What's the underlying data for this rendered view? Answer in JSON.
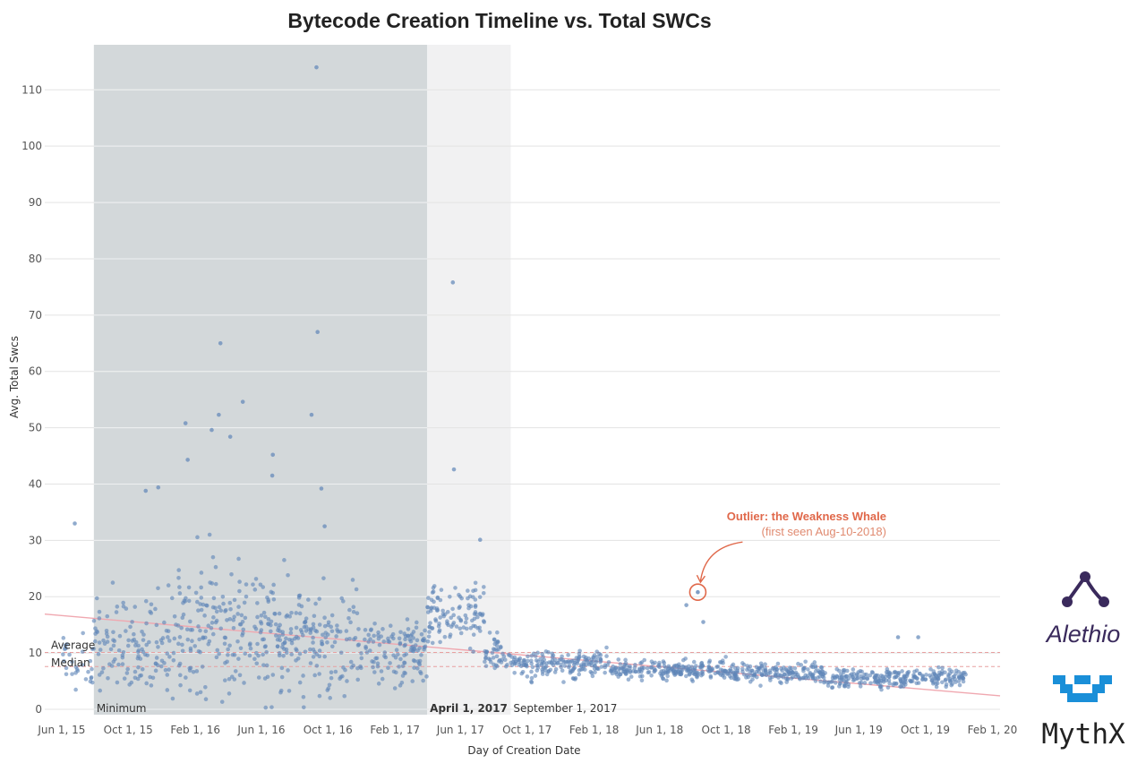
{
  "chart_data": {
    "type": "scatter",
    "title": "Bytecode Creation Timeline vs. Total SWCs",
    "xlabel": "Day of Creation Date",
    "ylabel": "Avg. Total Swcs",
    "x_range": [
      "2015-05-01",
      "2020-02-15"
    ],
    "ylim": [
      0,
      118
    ],
    "y_ticks": [
      0,
      10,
      20,
      30,
      40,
      50,
      60,
      70,
      80,
      90,
      100,
      110
    ],
    "x_ticks": [
      {
        "date": "2015-06-01",
        "label": "Jun 1, 15"
      },
      {
        "date": "2015-10-01",
        "label": "Oct 1, 15"
      },
      {
        "date": "2016-02-01",
        "label": "Feb 1, 16"
      },
      {
        "date": "2016-06-01",
        "label": "Jun 1, 16"
      },
      {
        "date": "2016-10-01",
        "label": "Oct 1, 16"
      },
      {
        "date": "2017-02-01",
        "label": "Feb 1, 17"
      },
      {
        "date": "2017-06-01",
        "label": "Jun 1, 17"
      },
      {
        "date": "2017-10-01",
        "label": "Oct 1, 17"
      },
      {
        "date": "2018-02-01",
        "label": "Feb 1, 18"
      },
      {
        "date": "2018-06-01",
        "label": "Jun 1, 18"
      },
      {
        "date": "2018-10-01",
        "label": "Oct 1, 18"
      },
      {
        "date": "2019-02-01",
        "label": "Feb 1, 19"
      },
      {
        "date": "2019-06-01",
        "label": "Jun 1, 19"
      },
      {
        "date": "2019-10-01",
        "label": "Oct 1, 19"
      },
      {
        "date": "2020-02-01",
        "label": "Feb 1, 20"
      }
    ],
    "bands": [
      {
        "start": "2015-07-30",
        "end": "2017-04-01",
        "label": "April 1, 2017",
        "color": "#d3d8da"
      },
      {
        "start": "2017-04-01",
        "end": "2017-09-01",
        "label": "September 1, 2017",
        "color": "#f1f1f2"
      }
    ],
    "band_start_label": "Minimum",
    "reference_lines": [
      {
        "label": "Average",
        "value": 10.1,
        "color": "#e8a0a0"
      },
      {
        "label": "Median",
        "value": 7.6,
        "color": "#e8a0a0"
      }
    ],
    "trend_line": {
      "start": [
        "2015-05-01",
        16.9
      ],
      "end": [
        "2020-02-15",
        2.4
      ],
      "color": "#f0a8b0"
    },
    "annotation": {
      "title": "Outlier: the Weakness Whale",
      "subtitle": "(first seen Aug-10-2018)",
      "point": [
        "2018-08-10",
        20.8
      ],
      "color": "#e0684a"
    },
    "notable_points": [
      {
        "x": "2016-09-10",
        "y": 114
      },
      {
        "x": "2017-05-18",
        "y": 75.8
      },
      {
        "x": "2016-09-12",
        "y": 67
      },
      {
        "x": "2016-03-18",
        "y": 65
      },
      {
        "x": "2016-04-28",
        "y": 54.6
      },
      {
        "x": "2016-03-15",
        "y": 52.3
      },
      {
        "x": "2016-09-01",
        "y": 52.3
      },
      {
        "x": "2016-01-14",
        "y": 50.8
      },
      {
        "x": "2016-03-02",
        "y": 49.6
      },
      {
        "x": "2016-04-05",
        "y": 48.4
      },
      {
        "x": "2016-06-22",
        "y": 45.2
      },
      {
        "x": "2016-01-18",
        "y": 44.3
      },
      {
        "x": "2017-05-20",
        "y": 42.6
      },
      {
        "x": "2016-06-21",
        "y": 41.5
      },
      {
        "x": "2015-11-25",
        "y": 39.4
      },
      {
        "x": "2015-11-02",
        "y": 38.8
      },
      {
        "x": "2016-09-19",
        "y": 39.2
      },
      {
        "x": "2015-06-25",
        "y": 33
      },
      {
        "x": "2016-09-25",
        "y": 32.5
      },
      {
        "x": "2017-07-07",
        "y": 30.1
      },
      {
        "x": "2018-07-20",
        "y": 18.5
      },
      {
        "x": "2018-08-20",
        "y": 15.5
      },
      {
        "x": "2019-08-12",
        "y": 12.8
      },
      {
        "x": "2019-09-18",
        "y": 12.8
      }
    ],
    "dense_segments": [
      {
        "start": "2015-06-01",
        "end": "2015-07-30",
        "center": 8.5,
        "spread": 5,
        "count": 30
      },
      {
        "start": "2015-07-30",
        "end": "2016-01-01",
        "center": 11,
        "spread": 8,
        "count": 130
      },
      {
        "start": "2016-01-01",
        "end": "2016-07-01",
        "center": 14,
        "spread": 11,
        "count": 200
      },
      {
        "start": "2016-07-01",
        "end": "2016-12-01",
        "center": 12,
        "spread": 9,
        "count": 160
      },
      {
        "start": "2016-12-01",
        "end": "2017-04-01",
        "center": 10,
        "spread": 6,
        "count": 120
      },
      {
        "start": "2017-04-01",
        "end": "2017-07-15",
        "center": 17,
        "spread": 5,
        "count": 110
      },
      {
        "start": "2017-07-15",
        "end": "2017-09-01",
        "center": 10,
        "spread": 3,
        "count": 45
      },
      {
        "start": "2017-09-01",
        "end": "2018-03-01",
        "center": 8,
        "spread": 2.2,
        "count": 180
      },
      {
        "start": "2018-03-01",
        "end": "2018-10-01",
        "center": 7,
        "spread": 1.6,
        "count": 210
      },
      {
        "start": "2018-10-01",
        "end": "2019-04-01",
        "center": 6.5,
        "spread": 1.6,
        "count": 180
      },
      {
        "start": "2019-04-01",
        "end": "2019-12-15",
        "center": 5.5,
        "spread": 1.5,
        "count": 240
      }
    ],
    "point_color": "#5f86b8",
    "grid": true
  },
  "logos": {
    "alethio": "Alethio",
    "mythx": "MythX",
    "alethio_color": "#3a2a5c",
    "mythx_color": "#1a8fd8",
    "mythx_text_color": "#222222"
  }
}
